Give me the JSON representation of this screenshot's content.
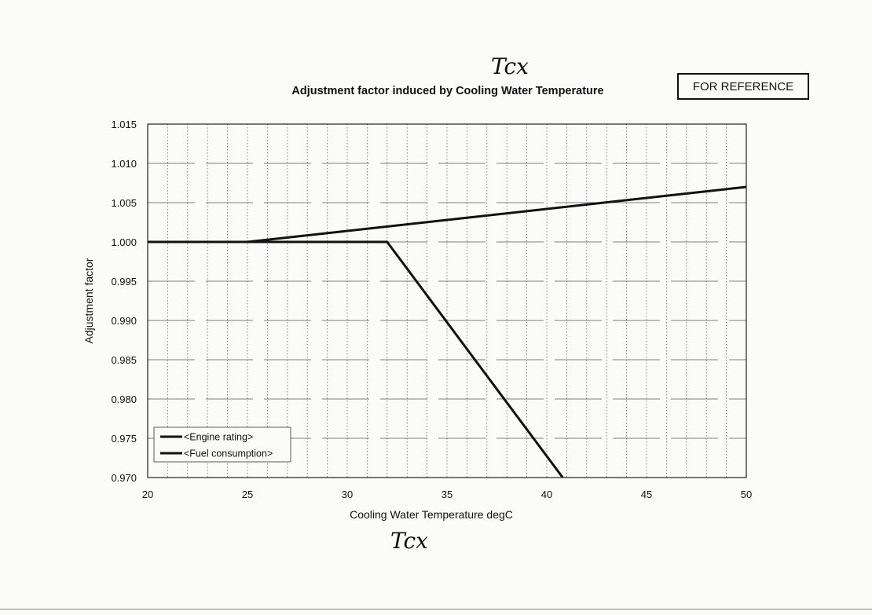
{
  "handwritten": {
    "top": "Tcx",
    "bottom": "Tcx"
  },
  "stamp": "FOR REFERENCE",
  "chart_data": {
    "type": "line",
    "title": "Adjustment factor induced by Cooling Water Temperature",
    "xlabel": "Cooling Water Temperature  degC",
    "ylabel": "Adjustment factor",
    "xlim": [
      20,
      50
    ],
    "ylim": [
      0.97,
      1.015
    ],
    "x_ticks": [
      "20",
      "25",
      "30",
      "35",
      "40",
      "45",
      "50"
    ],
    "y_ticks": [
      "1.015",
      "1.010",
      "1.005",
      "1.000",
      "0.995",
      "0.990",
      "0.985",
      "0.980",
      "0.975",
      "0.970"
    ],
    "grid": "on",
    "legend_position": "bottom-left",
    "series": [
      {
        "name": "<Engine rating>",
        "color": "#111111",
        "points": [
          [
            20,
            1.0
          ],
          [
            32,
            1.0
          ],
          [
            40.8,
            0.97
          ]
        ]
      },
      {
        "name": "<Fuel consumption>",
        "color": "#111111",
        "points": [
          [
            20,
            1.0
          ],
          [
            25,
            1.0
          ],
          [
            50,
            1.007
          ]
        ]
      }
    ]
  }
}
